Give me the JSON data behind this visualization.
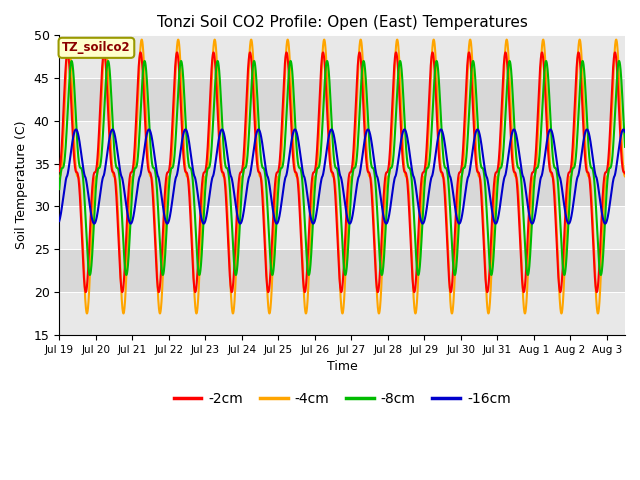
{
  "title": "Tonzi Soil CO2 Profile: Open (East) Temperatures",
  "xlabel": "Time",
  "ylabel": "Soil Temperature (C)",
  "ylim": [
    15,
    50
  ],
  "series_labels": [
    "-2cm",
    "-4cm",
    "-8cm",
    "-16cm"
  ],
  "series_colors": [
    "#ff0000",
    "#ffa500",
    "#00bb00",
    "#0000cc"
  ],
  "legend_label": "TZ_soilco2",
  "bg_light": "#e8e8e8",
  "bg_dark": "#d0d0d0",
  "xtick_labels": [
    "Jul 19",
    "Jul 20",
    "Jul 21",
    "Jul 22",
    "Jul 23",
    "Jul 24",
    "Jul 25",
    "Jul 26",
    "Jul 27",
    "Jul 28",
    "Jul 29",
    "Jul 30",
    "Jul 31",
    "Aug 1",
    "Aug 2",
    "Aug 3"
  ],
  "mean_2cm": 34.0,
  "mean_4cm": 33.5,
  "mean_8cm": 34.5,
  "mean_16cm": 33.5,
  "amp_2cm": 14.0,
  "amp_4cm": 16.0,
  "amp_8cm": 12.5,
  "amp_16cm": 5.5,
  "phase_2cm": -0.15,
  "phase_4cm": 0.05,
  "phase_8cm": 0.55,
  "phase_16cm": 1.3,
  "sharpness": 2.5
}
